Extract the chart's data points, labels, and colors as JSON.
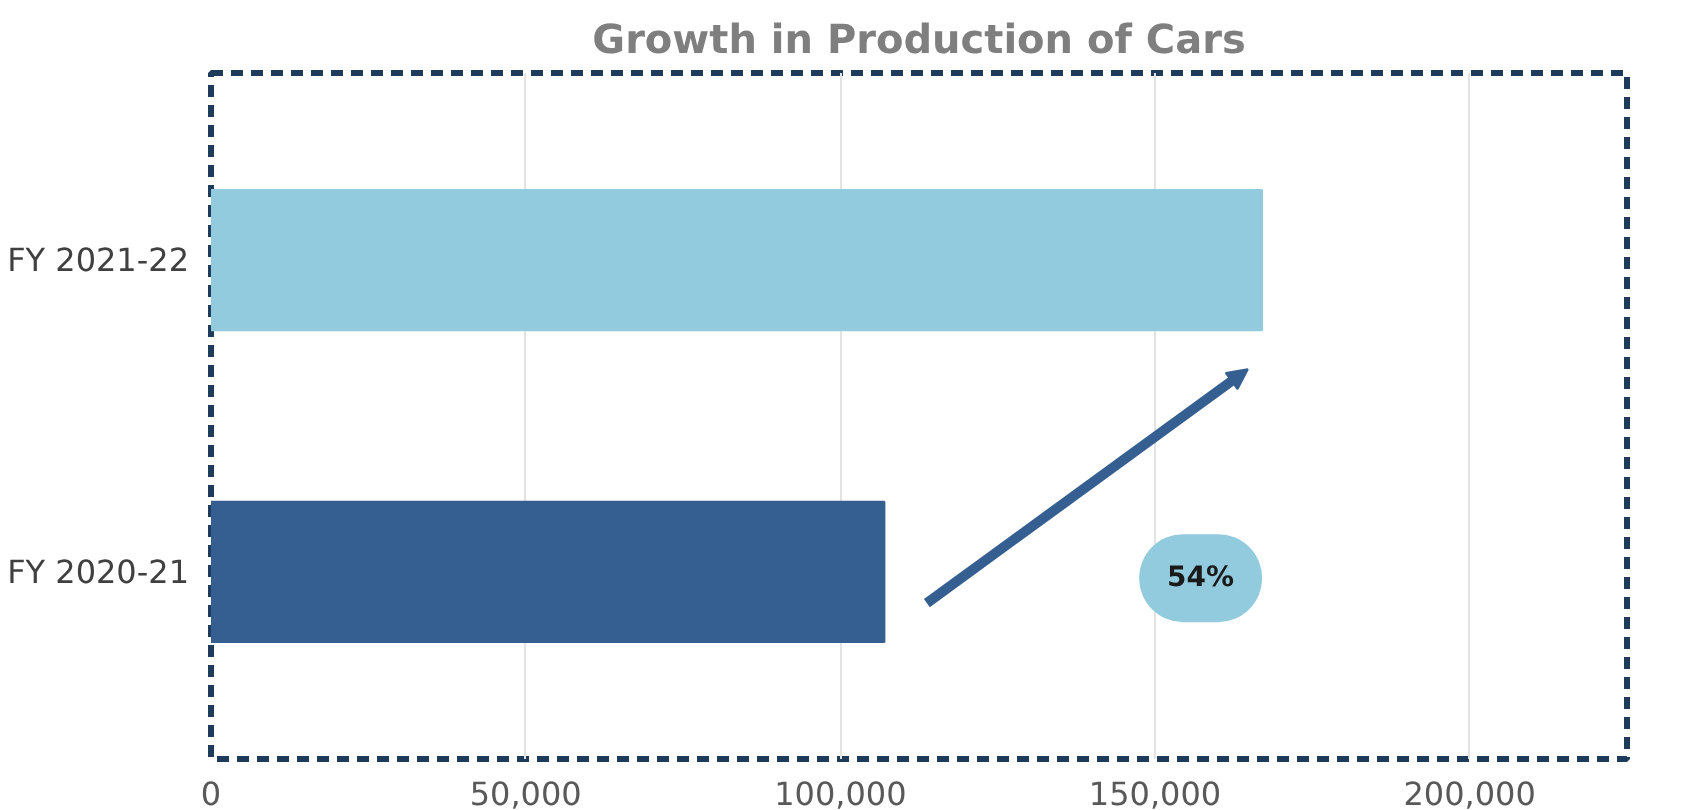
{
  "chart_data": {
    "type": "bar",
    "orientation": "horizontal",
    "title": "Growth in Production of Cars",
    "categories": [
      "FY 2021-22",
      "FY 2020-21"
    ],
    "values": [
      167000,
      107000
    ],
    "colors": [
      "#92cbdd",
      "#355f91"
    ],
    "xlim": [
      0,
      225000
    ],
    "xticks": [
      {
        "value": 0,
        "label": "0"
      },
      {
        "value": 50000,
        "label": "50,000"
      },
      {
        "value": 100000,
        "label": "100,000"
      },
      {
        "value": 150000,
        "label": "150,000"
      },
      {
        "value": 200000,
        "label": "200,000"
      }
    ],
    "grid": "x",
    "annotations": [
      "54%"
    ]
  }
}
